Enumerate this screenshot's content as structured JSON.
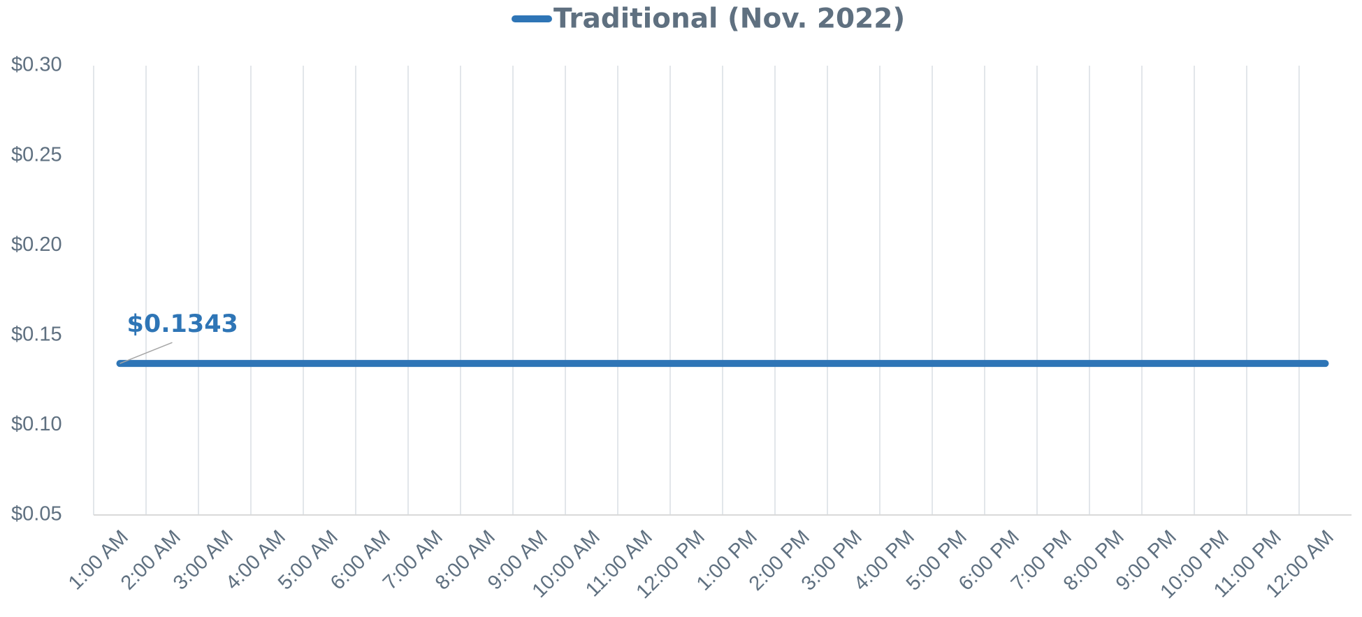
{
  "chart_data": {
    "type": "line",
    "categories": [
      "1:00 AM",
      "2:00 AM",
      "3:00 AM",
      "4:00 AM",
      "5:00 AM",
      "6:00 AM",
      "7:00 AM",
      "8:00 AM",
      "9:00 AM",
      "10:00 AM",
      "11:00 AM",
      "12:00 PM",
      "1:00 PM",
      "2:00 PM",
      "3:00 PM",
      "4:00 PM",
      "5:00 PM",
      "6:00 PM",
      "7:00 PM",
      "8:00 PM",
      "9:00 PM",
      "10:00 PM",
      "11:00 PM",
      "12:00 AM"
    ],
    "series": [
      {
        "name": "Traditional (Nov. 2022)",
        "color": "#2e75b6",
        "values": [
          0.1343,
          0.1343,
          0.1343,
          0.1343,
          0.1343,
          0.1343,
          0.1343,
          0.1343,
          0.1343,
          0.1343,
          0.1343,
          0.1343,
          0.1343,
          0.1343,
          0.1343,
          0.1343,
          0.1343,
          0.1343,
          0.1343,
          0.1343,
          0.1343,
          0.1343,
          0.1343,
          0.1343
        ],
        "value_labels": [
          "$0.1343",
          null,
          null,
          null,
          null,
          null,
          null,
          null,
          null,
          null,
          null,
          null,
          null,
          null,
          null,
          null,
          null,
          null,
          null,
          null,
          null,
          null,
          null,
          null
        ]
      }
    ],
    "ylim": [
      0.05,
      0.3
    ],
    "yticks": [
      {
        "value": 0.05,
        "label": "$0.05"
      },
      {
        "value": 0.1,
        "label": "$0.10"
      },
      {
        "value": 0.15,
        "label": "$0.15"
      },
      {
        "value": 0.2,
        "label": "$0.20"
      },
      {
        "value": 0.25,
        "label": "$0.25"
      },
      {
        "value": 0.3,
        "label": "$0.30"
      }
    ],
    "xgrid": true,
    "legend": "top"
  }
}
